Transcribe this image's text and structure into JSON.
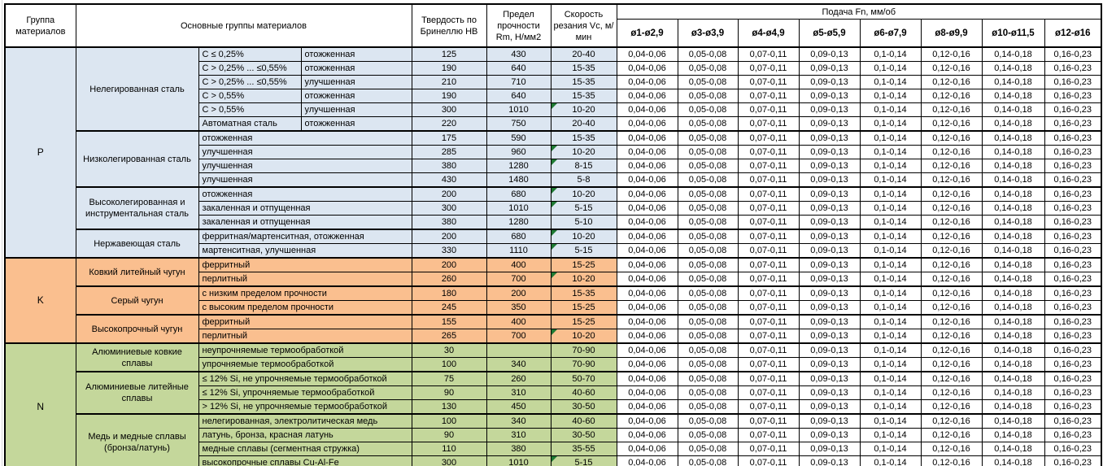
{
  "header": {
    "col_group": "Группа материалов",
    "col_main": "Основные группы материалов",
    "col_hb": "Твердость по Бринеллю HB",
    "col_rm": "Предел прочности Rm, Н/мм2",
    "col_vc": "Скорость резания Vc, м/мин",
    "feed_title": "Подача Fn, мм/об",
    "feed_columns": [
      "ø1-ø2,9",
      "ø3-ø3,9",
      "ø4-ø4,9",
      "ø5-ø5,9",
      "ø6-ø7,9",
      "ø8-ø9,9",
      "ø10-ø11,5",
      "ø12-ø16"
    ]
  },
  "colors": {
    "p_section": "#DCE6F1",
    "k_section": "#FABF8F",
    "n_section": "#C4D79B",
    "marker": "#1F7A33",
    "border": "#000000"
  },
  "feed_values": [
    "0,04-0,06",
    "0,05-0,08",
    "0,07-0,11",
    "0,09-0,13",
    "0,1-0,14",
    "0,12-0,16",
    "0,14-0,18",
    "0,16-0,23"
  ],
  "sections": [
    {
      "code": "P",
      "color_key": "p_section",
      "groups": [
        {
          "name": "Нелегированная сталь",
          "split": true,
          "rows": [
            {
              "s1": "С ≤ 0,25%",
              "s2": "отожженная",
              "hb": "125",
              "rm": "430",
              "vc": "20-40",
              "m": false
            },
            {
              "s1": "С > 0,25% ... ≤0,55%",
              "s2": "отожженная",
              "hb": "190",
              "rm": "640",
              "vc": "15-35",
              "m": false
            },
            {
              "s1": "С > 0,25% ... ≤0,55%",
              "s2": "улучшенная",
              "hb": "210",
              "rm": "710",
              "vc": "15-35",
              "m": false
            },
            {
              "s1": "С > 0,55%",
              "s2": "отожженная",
              "hb": "190",
              "rm": "640",
              "vc": "15-35",
              "m": false
            },
            {
              "s1": "С > 0,55%",
              "s2": "улучшенная",
              "hb": "300",
              "rm": "1010",
              "vc": "10-20",
              "m": true
            },
            {
              "s1": "Автоматная сталь",
              "s2": "отожженная",
              "hb": "220",
              "rm": "750",
              "vc": "20-40",
              "m": false
            }
          ]
        },
        {
          "name": "Низколегированная сталь",
          "split": false,
          "rows": [
            {
              "s1": "отожженная",
              "hb": "175",
              "rm": "590",
              "vc": "15-35",
              "m": false
            },
            {
              "s1": "улучшенная",
              "hb": "285",
              "rm": "960",
              "vc": "10-20",
              "m": true
            },
            {
              "s1": "улучшенная",
              "hb": "380",
              "rm": "1280",
              "vc": "8-15",
              "m": true
            },
            {
              "s1": "улучшенная",
              "hb": "430",
              "rm": "1480",
              "vc": "5-8",
              "m": false
            }
          ]
        },
        {
          "name": "Высоколегированная и инструментальная сталь",
          "split": false,
          "rows": [
            {
              "s1": "отожженная",
              "hb": "200",
              "rm": "680",
              "vc": "10-20",
              "m": true
            },
            {
              "s1": "закаленная и отпущенная",
              "hb": "300",
              "rm": "1010",
              "vc": "5-15",
              "m": true
            },
            {
              "s1": "закаленная и отпущенная",
              "hb": "380",
              "rm": "1280",
              "vc": "5-10",
              "m": false
            }
          ]
        },
        {
          "name": "Нержавеющая сталь",
          "split": false,
          "rows": [
            {
              "s1": "ферритная/мартенситная, отожженная",
              "hb": "200",
              "rm": "680",
              "vc": "10-20",
              "m": true
            },
            {
              "s1": "мартенситная, улучшенная",
              "hb": "330",
              "rm": "1110",
              "vc": "5-15",
              "m": true
            }
          ]
        }
      ]
    },
    {
      "code": "K",
      "color_key": "k_section",
      "groups": [
        {
          "name": "Ковкий литейный чугун",
          "split": false,
          "rows": [
            {
              "s1": "ферритный",
              "hb": "200",
              "rm": "400",
              "vc": "15-25",
              "m": false
            },
            {
              "s1": "перлитный",
              "hb": "260",
              "rm": "700",
              "vc": "10-20",
              "m": true
            }
          ]
        },
        {
          "name": "Серый чугун",
          "split": false,
          "rows": [
            {
              "s1": "с низким пределом прочности",
              "hb": "180",
              "rm": "200",
              "vc": "15-35",
              "m": false
            },
            {
              "s1": "с высоким пределом прочности",
              "hb": "245",
              "rm": "350",
              "vc": "15-25",
              "m": false
            }
          ]
        },
        {
          "name": "Высокопрочный чугун",
          "split": false,
          "rows": [
            {
              "s1": "ферритный",
              "hb": "155",
              "rm": "400",
              "vc": "15-25",
              "m": false
            },
            {
              "s1": "перлитный",
              "hb": "265",
              "rm": "700",
              "vc": "10-20",
              "m": true
            }
          ]
        }
      ]
    },
    {
      "code": "N",
      "color_key": "n_section",
      "groups": [
        {
          "name": "Алюминиевые ковкие сплавы",
          "split": false,
          "rows": [
            {
              "s1": "неупрочняемые термообработкой",
              "hb": "30",
              "rm": "",
              "vc": "70-90",
              "m": false
            },
            {
              "s1": "упрочняемые термообработкой",
              "hb": "100",
              "rm": "340",
              "vc": "70-90",
              "m": false
            }
          ]
        },
        {
          "name": "Алюминиевые литейные сплавы",
          "split": false,
          "rows": [
            {
              "s1": "≤ 12% Si, не упрочняемые термообработкой",
              "hb": "75",
              "rm": "260",
              "vc": "50-70",
              "m": false
            },
            {
              "s1": "≤ 12% Si, упрочняемые термообработкой",
              "hb": "90",
              "rm": "310",
              "vc": "40-60",
              "m": false
            },
            {
              "s1": "> 12% Si, не упрочняемые термообработкой",
              "hb": "130",
              "rm": "450",
              "vc": "30-50",
              "m": false
            }
          ]
        },
        {
          "name": "Медь и медные сплавы (бронза/латунь)",
          "split": false,
          "rows": [
            {
              "s1": "нелегированная, электролитическая медь",
              "hb": "100",
              "rm": "340",
              "vc": "40-60",
              "m": false
            },
            {
              "s1": "латунь, бронза, красная латунь",
              "hb": "90",
              "rm": "310",
              "vc": "30-50",
              "m": false
            },
            {
              "s1": "медные сплавы (сегментная стружка)",
              "hb": "110",
              "rm": "380",
              "vc": "35-55",
              "m": false
            },
            {
              "s1": "высокопрочные сплавы Cu-Al-Fe",
              "hb": "300",
              "rm": "1010",
              "vc": "5-15",
              "m": true
            }
          ]
        }
      ]
    }
  ]
}
